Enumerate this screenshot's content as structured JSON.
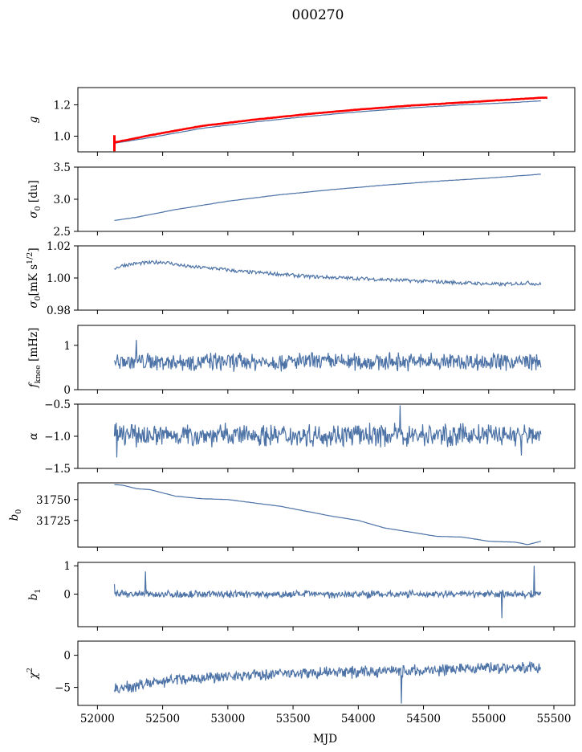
{
  "figure": {
    "title": "000270",
    "xlabel": "MJD"
  },
  "colors": {
    "series": "#4c72a6",
    "reference": "#ff0000"
  },
  "chart_data": [
    {
      "type": "line",
      "ylabel": "g",
      "ylim": [
        0.9,
        1.31
      ],
      "yticks": [
        1.0,
        1.2
      ],
      "ytick_labels": [
        "1.0",
        "1.2"
      ],
      "series": [
        {
          "style": "line",
          "color": "#4c72a6",
          "x": [
            52130,
            52400,
            52800,
            53200,
            53600,
            54000,
            54400,
            54800,
            55200,
            55400
          ],
          "y": [
            0.955,
            0.99,
            1.05,
            1.09,
            1.125,
            1.155,
            1.18,
            1.2,
            1.215,
            1.225
          ]
        },
        {
          "style": "thick",
          "color": "#ff0000",
          "x": [
            52130,
            52400,
            52800,
            53200,
            53600,
            54000,
            54400,
            54800,
            55200,
            55400,
            55450
          ],
          "y": [
            0.96,
            1.005,
            1.065,
            1.105,
            1.14,
            1.17,
            1.195,
            1.215,
            1.235,
            1.245,
            1.245
          ]
        }
      ]
    },
    {
      "type": "line",
      "ylabel": "σ0 [du]",
      "ylim": [
        2.5,
        3.5
      ],
      "yticks": [
        2.5,
        3.0,
        3.5
      ],
      "ytick_labels": [
        "2.5",
        "3.0",
        "3.5"
      ],
      "series": [
        {
          "style": "line",
          "color": "#4c72a6",
          "x": [
            52130,
            52300,
            52600,
            53000,
            53400,
            53800,
            54200,
            54600,
            55000,
            55400
          ],
          "y": [
            2.67,
            2.72,
            2.84,
            2.97,
            3.07,
            3.15,
            3.22,
            3.28,
            3.33,
            3.39
          ]
        }
      ]
    },
    {
      "type": "line",
      "ylabel": "σ0 [mK s^1/2]",
      "ylim": [
        0.98,
        1.02
      ],
      "yticks": [
        0.98,
        1.0,
        1.02
      ],
      "ytick_labels": [
        "0.98",
        "1.00",
        "1.02"
      ],
      "series": [
        {
          "style": "line",
          "color": "#4c72a6",
          "x": [
            52130,
            52200,
            52300,
            52500,
            52700,
            52900,
            53100,
            53300,
            53600,
            53900,
            54200,
            54500,
            54800,
            55100,
            55300,
            55400
          ],
          "y": [
            1.006,
            1.008,
            1.009,
            1.01,
            1.007,
            1.006,
            1.004,
            1.003,
            1.001,
            1.0,
            0.999,
            0.998,
            0.997,
            0.996,
            0.997,
            0.996
          ]
        }
      ]
    },
    {
      "type": "line",
      "ylabel": "f_knee [mHz]",
      "ylim": [
        0,
        1.45
      ],
      "yticks": [
        0,
        1
      ],
      "ytick_labels": [
        "0",
        "1"
      ],
      "series": [
        {
          "style": "noisy",
          "color": "#4c72a6",
          "x_start": 52130,
          "x_end": 55400,
          "mean": 0.63,
          "amp": 0.2,
          "spikes": [
            [
              52300,
              1.12
            ]
          ]
        }
      ]
    },
    {
      "type": "line",
      "ylabel": "α",
      "ylim": [
        -1.5,
        -0.5
      ],
      "yticks": [
        -1.5,
        -1.0,
        -0.5
      ],
      "ytick_labels": [
        "−1.5",
        "−1.0",
        "−0.5"
      ],
      "series": [
        {
          "style": "noisy",
          "color": "#4c72a6",
          "x_start": 52130,
          "x_end": 55400,
          "mean": -0.98,
          "amp": 0.17,
          "spikes": [
            [
              54320,
              -0.52
            ],
            [
              52150,
              -1.33
            ],
            [
              55250,
              -1.3
            ]
          ]
        }
      ]
    },
    {
      "type": "line",
      "ylabel": "b0",
      "ylim": [
        31693,
        31770
      ],
      "yticks": [
        31725,
        31750
      ],
      "ytick_labels": [
        "31725",
        "31750"
      ],
      "series": [
        {
          "style": "line",
          "color": "#4c72a6",
          "x": [
            52130,
            52200,
            52300,
            52400,
            52600,
            52800,
            53000,
            53200,
            53400,
            53600,
            53800,
            54000,
            54200,
            54400,
            54600,
            54800,
            55000,
            55200,
            55300,
            55400
          ],
          "y": [
            31768,
            31767,
            31763,
            31762,
            31754,
            31751,
            31750,
            31746,
            31742,
            31736,
            31730,
            31725,
            31716,
            31711,
            31706,
            31705,
            31700,
            31699,
            31696,
            31700
          ]
        }
      ]
    },
    {
      "type": "line",
      "ylabel": "b1",
      "ylim": [
        -1.15,
        1.12
      ],
      "yticks": [
        0,
        1
      ],
      "ytick_labels": [
        "0",
        "1"
      ],
      "series": [
        {
          "style": "noisy",
          "color": "#4c72a6",
          "x_start": 52130,
          "x_end": 55400,
          "mean": 0.0,
          "amp": 0.13,
          "spikes": [
            [
              52130,
              0.35
            ],
            [
              52370,
              0.8
            ],
            [
              55100,
              -0.85
            ],
            [
              55350,
              1.0
            ]
          ]
        }
      ]
    },
    {
      "type": "line",
      "ylabel": "χ²",
      "ylim": [
        -7.8,
        2.2
      ],
      "yticks": [
        -5,
        0
      ],
      "ytick_labels": [
        "−5",
        "0"
      ],
      "xticks": [
        52000,
        52500,
        53000,
        53500,
        54000,
        54500,
        55000,
        55500
      ],
      "xtick_labels": [
        "52000",
        "52500",
        "53000",
        "53500",
        "54000",
        "54500",
        "55000",
        "55500"
      ],
      "series": [
        {
          "style": "noisy",
          "color": "#4c72a6",
          "x_start": 52130,
          "x_end": 55400,
          "trend": [
            [
              52130,
              -5.3
            ],
            [
              52500,
              -4.0
            ],
            [
              53000,
              -3.2
            ],
            [
              53500,
              -2.8
            ],
            [
              54000,
              -2.6
            ],
            [
              54500,
              -2.4
            ],
            [
              55000,
              -1.8
            ],
            [
              55400,
              -2.0
            ]
          ],
          "amp": 0.9,
          "spikes": [
            [
              54330,
              -7.5
            ]
          ]
        }
      ]
    }
  ]
}
